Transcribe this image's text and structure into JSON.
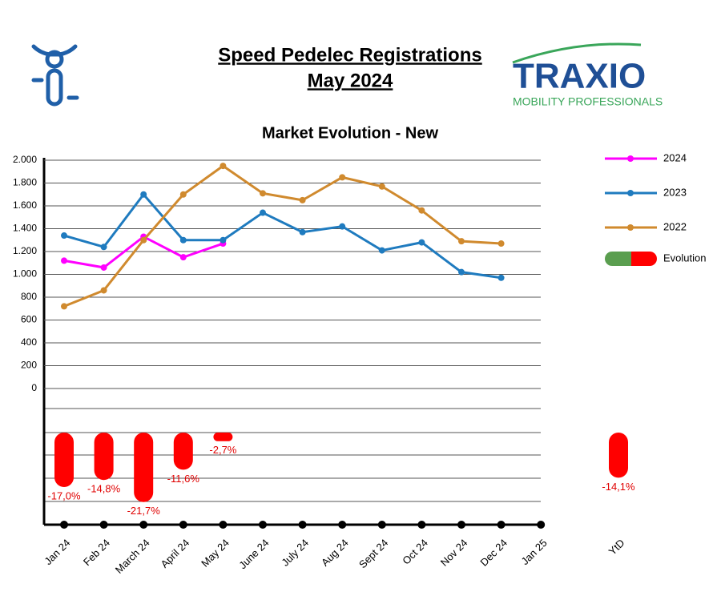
{
  "header": {
    "title": "Speed Pedelec Registrations",
    "subtitle": "May 2024",
    "logo_text": "TRAXIO",
    "logo_tagline": "MOBILITY PROFESSIONALS"
  },
  "chart_data": {
    "type": "line",
    "title": "Market Evolution - New",
    "categories": [
      "Jan 24",
      "Feb 24",
      "March 24",
      "April 24",
      "May 24",
      "June 24",
      "July 24",
      "Aug 24",
      "Sept 24",
      "Oct 24",
      "Nov 24",
      "Dec 24",
      "Jan 25"
    ],
    "series": [
      {
        "name": "2024",
        "color": "#ff00ff",
        "values": [
          1120,
          1060,
          1330,
          1150,
          1270,
          null,
          null,
          null,
          null,
          null,
          null,
          null,
          null
        ]
      },
      {
        "name": "2023",
        "color": "#1f7bbf",
        "values": [
          1340,
          1240,
          1700,
          1300,
          1300,
          1540,
          1370,
          1420,
          1210,
          1280,
          1020,
          970,
          null
        ]
      },
      {
        "name": "2022",
        "color": "#d08a2e",
        "values": [
          720,
          860,
          1300,
          1700,
          1950,
          1710,
          1650,
          1850,
          1770,
          1560,
          1290,
          1270,
          null
        ]
      }
    ],
    "evolution": {
      "name": "Evolution",
      "type": "bar",
      "axis": "y2",
      "color": "#ff0000",
      "positive_color": "#5a9e4f",
      "values": [
        -17.0,
        -14.8,
        -21.7,
        -11.6,
        -2.7,
        null,
        null,
        null,
        null,
        null,
        null,
        null,
        null
      ],
      "value_labels": [
        "-17,0%",
        "-14,8%",
        "-21,7%",
        "-11,6%",
        "-2,7%",
        null,
        null,
        null,
        null,
        null,
        null,
        null,
        null
      ],
      "ytd_label": "YtD",
      "ytd_value": -14.1,
      "ytd_value_label": "-14,1%"
    },
    "ylim": [
      0,
      2000
    ],
    "yticks": [
      0,
      200,
      400,
      600,
      800,
      {
        "value": 1000,
        "label": "1.000"
      },
      {
        "value": 1200,
        "label": "1.200"
      },
      {
        "value": 1400,
        "label": "1.400"
      },
      {
        "value": 1600,
        "label": "1.600"
      },
      {
        "value": 1800,
        "label": "1.800"
      },
      {
        "value": 2000,
        "label": "2.000"
      }
    ],
    "y2lim": [
      -28.75,
      0
    ],
    "grid": true,
    "legend": "right"
  }
}
